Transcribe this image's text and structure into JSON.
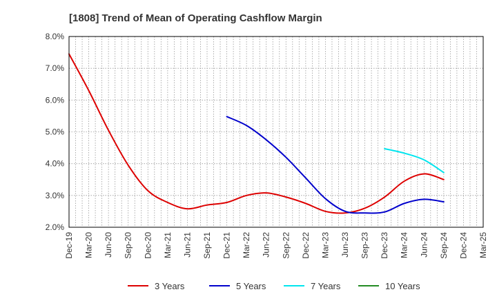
{
  "chart_data": {
    "type": "line",
    "title": "[1808]  Trend of Mean of Operating Cashflow Margin",
    "xlabel": "",
    "ylabel": "",
    "x_ticks": [
      "Dec-19",
      "Mar-20",
      "Jun-20",
      "Sep-20",
      "Dec-20",
      "Mar-21",
      "Jun-21",
      "Sep-21",
      "Dec-21",
      "Mar-22",
      "Jun-22",
      "Sep-22",
      "Dec-22",
      "Mar-23",
      "Jun-23",
      "Sep-23",
      "Dec-23",
      "Mar-24",
      "Jun-24",
      "Sep-24",
      "Dec-24",
      "Mar-25"
    ],
    "y_ticks": [
      "2.0%",
      "3.0%",
      "4.0%",
      "5.0%",
      "6.0%",
      "7.0%",
      "8.0%"
    ],
    "ylim": [
      2.0,
      8.0
    ],
    "grid": true,
    "legend_position": "bottom",
    "series": [
      {
        "name": "3 Years",
        "color": "#dd0000",
        "x": [
          "Dec-19",
          "Mar-20",
          "Jun-20",
          "Sep-20",
          "Dec-20",
          "Mar-21",
          "Jun-21",
          "Sep-21",
          "Dec-21",
          "Mar-22",
          "Jun-22",
          "Sep-22",
          "Dec-22",
          "Mar-23",
          "Jun-23",
          "Sep-23",
          "Dec-23",
          "Mar-24",
          "Jun-24",
          "Sep-24"
        ],
        "values": [
          7.45,
          6.3,
          5.05,
          3.95,
          3.15,
          2.78,
          2.58,
          2.7,
          2.78,
          3.0,
          3.08,
          2.95,
          2.75,
          2.5,
          2.45,
          2.6,
          2.95,
          3.45,
          3.68,
          3.5
        ]
      },
      {
        "name": "5 Years",
        "color": "#0000cc",
        "x": [
          "Dec-21",
          "Mar-22",
          "Jun-22",
          "Sep-22",
          "Dec-22",
          "Mar-23",
          "Jun-23",
          "Sep-23",
          "Dec-23",
          "Mar-24",
          "Jun-24",
          "Sep-24"
        ],
        "values": [
          5.48,
          5.2,
          4.75,
          4.2,
          3.55,
          2.9,
          2.5,
          2.45,
          2.48,
          2.75,
          2.88,
          2.8
        ]
      },
      {
        "name": "7 Years",
        "color": "#00e5ee",
        "x": [
          "Dec-23",
          "Mar-24",
          "Jun-24",
          "Sep-24"
        ],
        "values": [
          4.47,
          4.33,
          4.12,
          3.72
        ]
      },
      {
        "name": "10 Years",
        "color": "#228B22",
        "x": [],
        "values": []
      }
    ]
  }
}
